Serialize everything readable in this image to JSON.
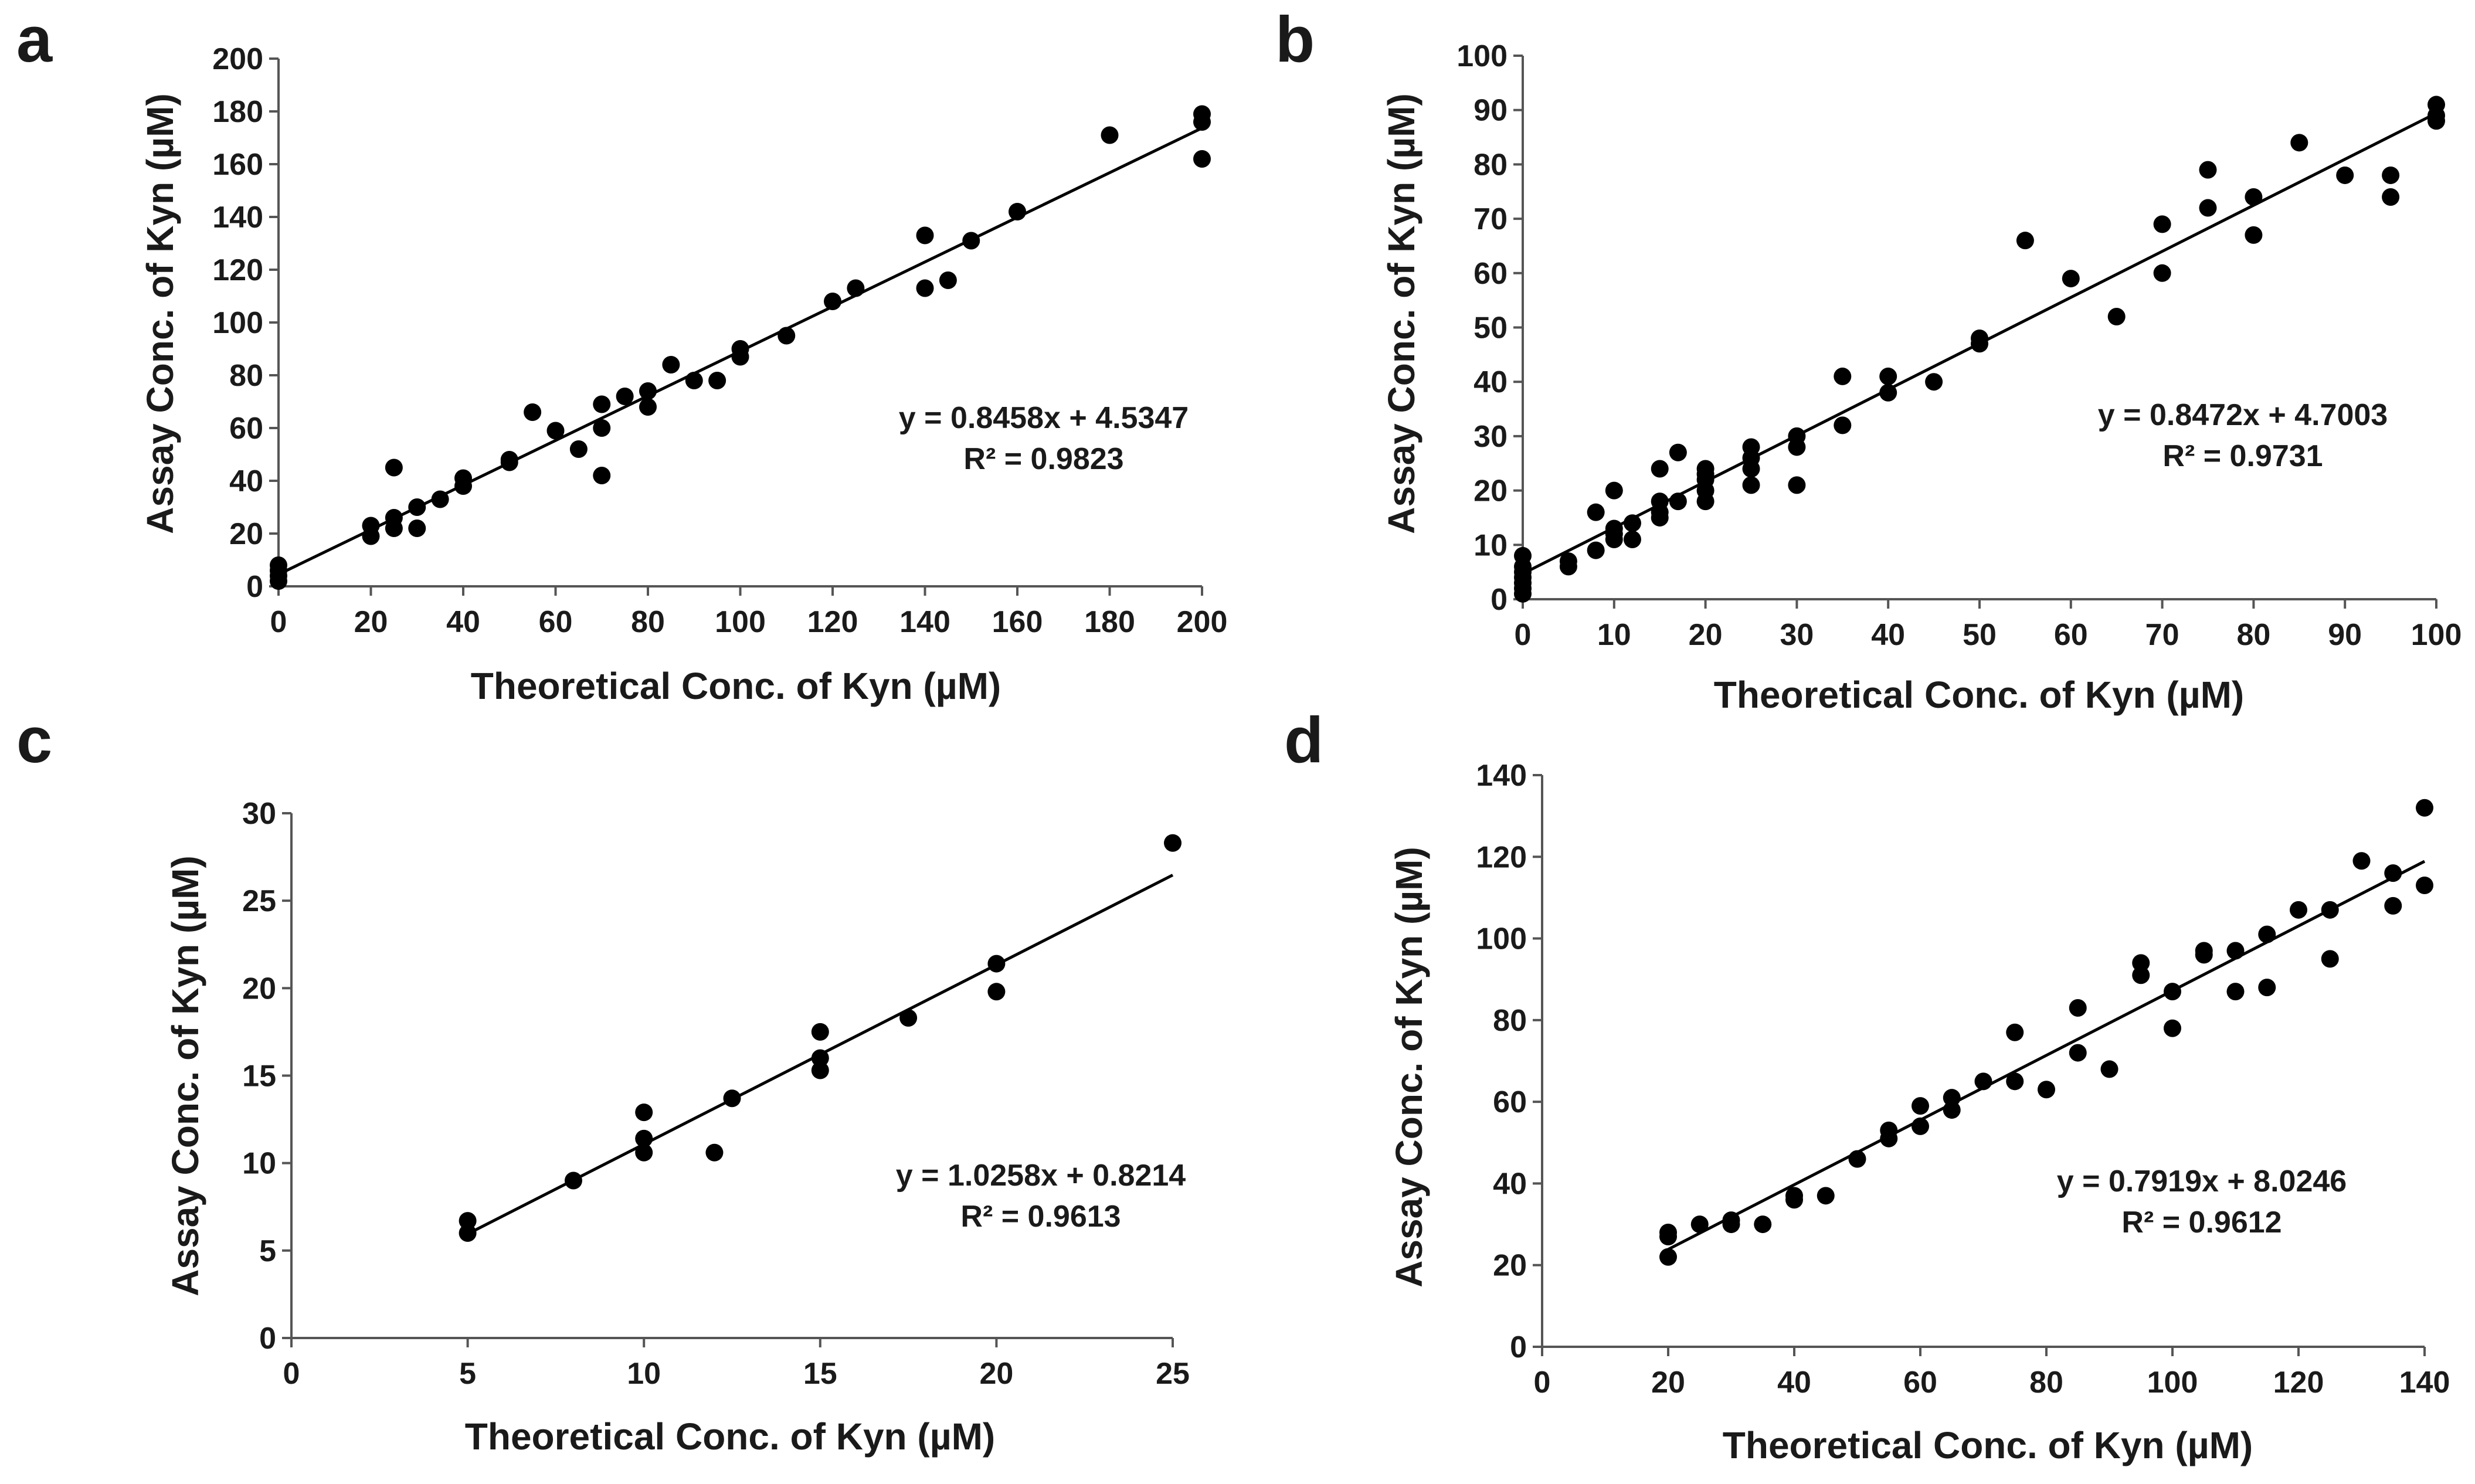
{
  "chart_data": [
    {
      "panel": "a",
      "type": "scatter",
      "xlabel": "Theoretical Conc. of Kyn (µM)",
      "ylabel": "Assay Conc. of Kyn (µM)",
      "xlim": [
        0,
        200
      ],
      "ylim": [
        0,
        200
      ],
      "xticks": [
        "0",
        "20",
        "40",
        "60",
        "80",
        "100",
        "120",
        "140",
        "160",
        "180",
        "200"
      ],
      "yticks": [
        "0",
        "20",
        "40",
        "60",
        "80",
        "100",
        "120",
        "140",
        "160",
        "180",
        "200"
      ],
      "equation": "y = 0.8458x + 4.5347",
      "r_squared": "R² = 0.9823",
      "fit": {
        "slope": 0.8458,
        "intercept": 4.5347
      },
      "grid": false,
      "points": [
        [
          0,
          2
        ],
        [
          0,
          4
        ],
        [
          0,
          6
        ],
        [
          0,
          8
        ],
        [
          20,
          19
        ],
        [
          20,
          23
        ],
        [
          25,
          22
        ],
        [
          25,
          26
        ],
        [
          25,
          45
        ],
        [
          30,
          22
        ],
        [
          30,
          30
        ],
        [
          35,
          33
        ],
        [
          40,
          38
        ],
        [
          40,
          41
        ],
        [
          50,
          47
        ],
        [
          50,
          48
        ],
        [
          55,
          66
        ],
        [
          60,
          59
        ],
        [
          65,
          52
        ],
        [
          70,
          42
        ],
        [
          70,
          60
        ],
        [
          70,
          69
        ],
        [
          75,
          72
        ],
        [
          80,
          68
        ],
        [
          80,
          74
        ],
        [
          85,
          84
        ],
        [
          90,
          78
        ],
        [
          95,
          78
        ],
        [
          100,
          87
        ],
        [
          100,
          90
        ],
        [
          110,
          95
        ],
        [
          120,
          108
        ],
        [
          125,
          113
        ],
        [
          140,
          113
        ],
        [
          140,
          133
        ],
        [
          145,
          116
        ],
        [
          150,
          131
        ],
        [
          160,
          142
        ],
        [
          180,
          171
        ],
        [
          200,
          162
        ],
        [
          200,
          176
        ],
        [
          200,
          179
        ]
      ]
    },
    {
      "panel": "b",
      "type": "scatter",
      "xlabel": "Theoretical Conc. of Kyn (µM)",
      "ylabel": "Assay Conc. of Kyn (µM)",
      "xlim": [
        0,
        100
      ],
      "ylim": [
        0,
        100
      ],
      "xticks": [
        "0",
        "10",
        "20",
        "30",
        "40",
        "50",
        "60",
        "70",
        "80",
        "90",
        "100"
      ],
      "yticks": [
        "0",
        "10",
        "20",
        "30",
        "40",
        "50",
        "60",
        "70",
        "80",
        "90",
        "100"
      ],
      "equation": "y = 0.8472x + 4.7003",
      "r_squared": "R² = 0.9731",
      "fit": {
        "slope": 0.8472,
        "intercept": 4.7003
      },
      "grid": false,
      "points": [
        [
          0,
          1
        ],
        [
          0,
          2
        ],
        [
          0,
          3
        ],
        [
          0,
          4
        ],
        [
          0,
          5
        ],
        [
          0,
          6
        ],
        [
          0,
          8
        ],
        [
          5,
          6
        ],
        [
          5,
          7
        ],
        [
          8,
          9
        ],
        [
          8,
          16
        ],
        [
          10,
          11
        ],
        [
          10,
          12
        ],
        [
          10,
          13
        ],
        [
          10,
          20
        ],
        [
          12,
          11
        ],
        [
          12,
          14
        ],
        [
          15,
          15
        ],
        [
          15,
          16
        ],
        [
          15,
          18
        ],
        [
          15,
          24
        ],
        [
          17,
          18
        ],
        [
          17,
          27
        ],
        [
          20,
          18
        ],
        [
          20,
          20
        ],
        [
          20,
          22
        ],
        [
          20,
          23
        ],
        [
          20,
          24
        ],
        [
          25,
          21
        ],
        [
          25,
          24
        ],
        [
          25,
          26
        ],
        [
          25,
          28
        ],
        [
          30,
          21
        ],
        [
          30,
          28
        ],
        [
          30,
          30
        ],
        [
          35,
          32
        ],
        [
          35,
          41
        ],
        [
          40,
          38
        ],
        [
          40,
          41
        ],
        [
          45,
          40
        ],
        [
          50,
          47
        ],
        [
          50,
          48
        ],
        [
          55,
          66
        ],
        [
          60,
          59
        ],
        [
          65,
          52
        ],
        [
          70,
          60
        ],
        [
          70,
          69
        ],
        [
          75,
          72
        ],
        [
          75,
          79
        ],
        [
          80,
          67
        ],
        [
          80,
          74
        ],
        [
          85,
          84
        ],
        [
          90,
          78
        ],
        [
          95,
          74
        ],
        [
          95,
          78
        ],
        [
          100,
          88
        ],
        [
          100,
          89
        ],
        [
          100,
          91
        ]
      ]
    },
    {
      "panel": "c",
      "type": "scatter",
      "xlabel": "Theoretical Conc. of Kyn (µM)",
      "ylabel": "Assay Conc. of Kyn (µM)",
      "xlim": [
        0,
        25
      ],
      "ylim": [
        0,
        30
      ],
      "xticks": [
        "0",
        "5",
        "10",
        "15",
        "20",
        "25"
      ],
      "yticks": [
        "0",
        "5",
        "10",
        "15",
        "20",
        "25",
        "30"
      ],
      "equation": "y = 1.0258x + 0.8214",
      "r_squared": "R² = 0.9613",
      "fit": {
        "slope": 1.0258,
        "intercept": 0.8214
      },
      "grid": false,
      "points": [
        [
          5,
          6.0
        ],
        [
          5,
          6.7
        ],
        [
          8,
          9.0
        ],
        [
          10,
          10.6
        ],
        [
          10,
          11.4
        ],
        [
          10,
          12.9
        ],
        [
          12,
          10.6
        ],
        [
          12.5,
          13.7
        ],
        [
          15,
          15.3
        ],
        [
          15,
          16.0
        ],
        [
          15,
          17.5
        ],
        [
          17.5,
          18.3
        ],
        [
          20,
          19.8
        ],
        [
          20,
          21.4
        ],
        [
          25,
          28.3
        ]
      ]
    },
    {
      "panel": "d",
      "type": "scatter",
      "xlabel": "Theoretical Conc. of Kyn (µM)",
      "ylabel": "Assay Conc. of Kyn (µM)",
      "xlim": [
        0,
        140
      ],
      "ylim": [
        0,
        140
      ],
      "xticks": [
        "0",
        "20",
        "40",
        "60",
        "80",
        "100",
        "120",
        "140"
      ],
      "yticks": [
        "0",
        "20",
        "40",
        "60",
        "80",
        "100",
        "120",
        "140"
      ],
      "equation": "y = 0.7919x + 8.0246",
      "r_squared": "R² = 0.9612",
      "fit": {
        "slope": 0.7919,
        "intercept": 8.0246
      },
      "grid": false,
      "points": [
        [
          20,
          22
        ],
        [
          20,
          27
        ],
        [
          20,
          28
        ],
        [
          25,
          30
        ],
        [
          30,
          30
        ],
        [
          30,
          31
        ],
        [
          35,
          30
        ],
        [
          40,
          36
        ],
        [
          40,
          37
        ],
        [
          45,
          37
        ],
        [
          50,
          46
        ],
        [
          55,
          51
        ],
        [
          55,
          53
        ],
        [
          60,
          54
        ],
        [
          60,
          59
        ],
        [
          65,
          58
        ],
        [
          65,
          61
        ],
        [
          70,
          65
        ],
        [
          75,
          65
        ],
        [
          75,
          77
        ],
        [
          80,
          63
        ],
        [
          85,
          72
        ],
        [
          85,
          83
        ],
        [
          90,
          68
        ],
        [
          95,
          91
        ],
        [
          95,
          94
        ],
        [
          100,
          78
        ],
        [
          100,
          87
        ],
        [
          105,
          96
        ],
        [
          105,
          97
        ],
        [
          110,
          87
        ],
        [
          110,
          97
        ],
        [
          115,
          88
        ],
        [
          115,
          101
        ],
        [
          120,
          107
        ],
        [
          125,
          95
        ],
        [
          125,
          107
        ],
        [
          130,
          119
        ],
        [
          135,
          108
        ],
        [
          135,
          116
        ],
        [
          140,
          113
        ],
        [
          140,
          132
        ]
      ]
    }
  ]
}
